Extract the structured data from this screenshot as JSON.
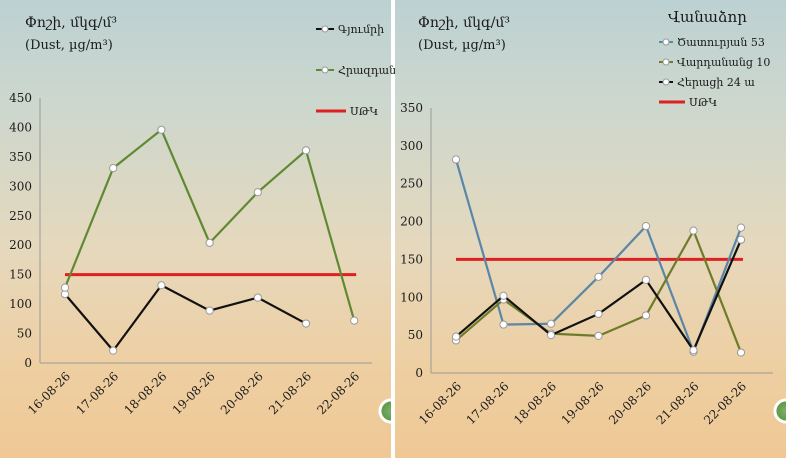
{
  "chart_data": [
    {
      "type": "line",
      "title": "Փոշի, մկգ/մ³",
      "subtitle": "(Dust, µg/m³)",
      "categories": [
        "16-08-26",
        "17-08-26",
        "18-08-26",
        "19-08-26",
        "20-08-26",
        "21-08-26",
        "22-08-26"
      ],
      "ylim": [
        0,
        450
      ],
      "yticks": [
        0,
        50,
        100,
        150,
        200,
        250,
        300,
        350,
        400,
        450
      ],
      "grid": false,
      "legend_position": "top-right",
      "series": [
        {
          "name": "Գյումրի",
          "color": "#111111",
          "values": [
            117,
            21,
            132,
            89,
            111,
            67,
            null
          ]
        },
        {
          "name": "Հրազդան",
          "color": "#5f8a32",
          "values": [
            128,
            331,
            396,
            204,
            290,
            361,
            72
          ]
        }
      ],
      "reference_line": {
        "name": "ՍԹԿ",
        "value": 150,
        "color": "#e02020"
      }
    },
    {
      "type": "line",
      "title": "Փոշի, մկգ/մ³",
      "subtitle": "(Dust, µg/m³)",
      "legend_title": "Վանաձոր",
      "categories": [
        "16-08-26",
        "17-08-26",
        "18-08-26",
        "19-08-26",
        "20-08-26",
        "21-08-26",
        "22-08-26"
      ],
      "ylim": [
        0,
        350
      ],
      "yticks": [
        0,
        50,
        100,
        150,
        200,
        250,
        300,
        350
      ],
      "grid": false,
      "legend_position": "top-right",
      "series": [
        {
          "name": "Ծատուրյան 53",
          "color": "#5a86a8",
          "values": [
            282,
            64,
            65,
            127,
            194,
            28,
            192
          ]
        },
        {
          "name": "Վարդանանց 10",
          "color": "#6f7b2a",
          "values": [
            43,
            97,
            52,
            49,
            76,
            188,
            27
          ]
        },
        {
          "name": "Հերացի 24 ա",
          "color": "#111111",
          "values": [
            48,
            102,
            50,
            78,
            123,
            30,
            176
          ]
        }
      ],
      "reference_line": {
        "name": "ՍԹԿ",
        "value": 150,
        "color": "#e02020"
      }
    }
  ]
}
